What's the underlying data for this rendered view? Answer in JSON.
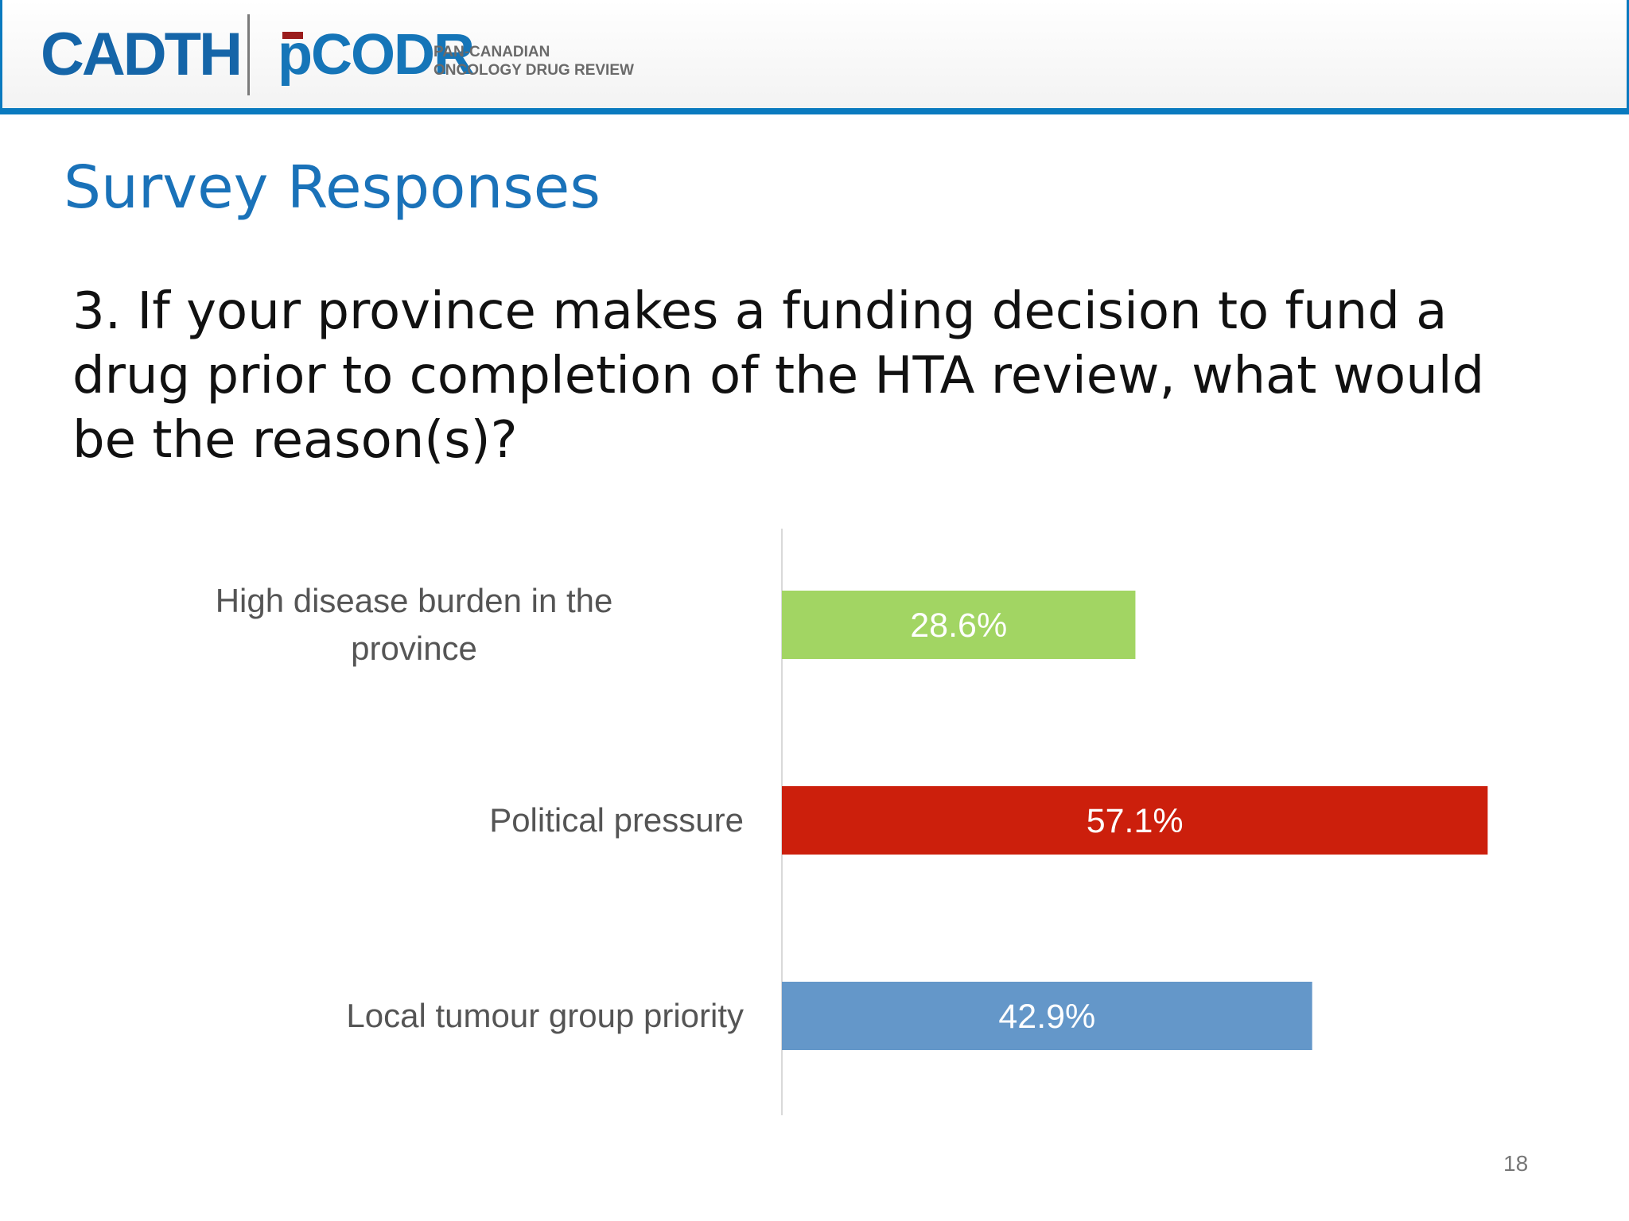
{
  "header": {
    "logo_primary": "CADTH",
    "logo_secondary": "pCODR",
    "tagline_line1": "PAN-CANADIAN",
    "tagline_line2": "ONCOLOGY DRUG REVIEW",
    "border_color": "#0a7abf"
  },
  "slide": {
    "title": "Survey Responses",
    "question": "3. If your province makes a funding decision to fund a drug prior to completion of the HTA review, what would be the reason(s)?",
    "page_number": "18"
  },
  "chart_data": {
    "type": "bar",
    "orientation": "horizontal",
    "categories": [
      "High disease burden in the province",
      "Political pressure",
      "Local tumour group priority"
    ],
    "category_lines": [
      [
        "High disease burden in the",
        "province"
      ],
      [
        "Political pressure"
      ],
      [
        "Local tumour group priority"
      ]
    ],
    "values": [
      28.6,
      57.1,
      42.9
    ],
    "value_labels": [
      "28.6%",
      "57.1%",
      "42.9%"
    ],
    "colors": [
      "#a2d563",
      "#cc1f0c",
      "#6497c9"
    ],
    "xlim": [
      0,
      100
    ],
    "grid": false,
    "legend": "none"
  }
}
